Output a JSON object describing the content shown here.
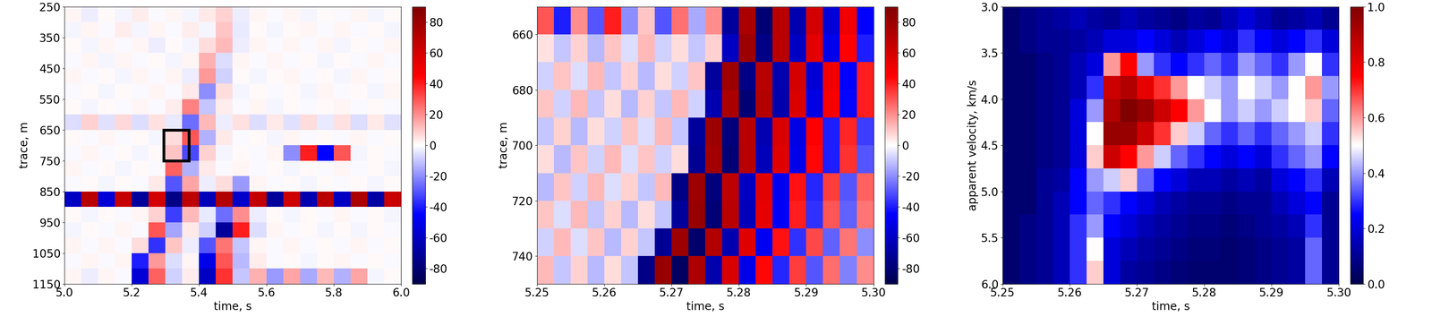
{
  "chart_data": [
    {
      "type": "heatmap",
      "xlabel": "time, s",
      "ylabel": "trace, m",
      "color": "seismic",
      "xlim": [
        5.0,
        6.0
      ],
      "ylim": [
        1150,
        250
      ],
      "xticks": [
        5.0,
        5.2,
        5.4,
        5.6,
        5.8,
        6.0
      ],
      "yticks": [
        250,
        350,
        450,
        550,
        650,
        750,
        850,
        950,
        1050,
        1150
      ],
      "clim": [
        -90,
        90
      ],
      "cticks": [
        -80,
        -60,
        -40,
        -20,
        0,
        20,
        40,
        60,
        80
      ],
      "box": {
        "x": [
          5.295,
          5.37
        ],
        "y": [
          650,
          750
        ]
      },
      "x_edges": [
        5.0,
        5.05,
        5.1,
        5.15,
        5.2,
        5.25,
        5.3,
        5.35,
        5.4,
        5.45,
        5.5,
        5.55,
        5.6,
        5.65,
        5.7,
        5.75,
        5.8,
        5.85,
        5.9,
        5.95,
        6.0
      ],
      "y_edges": [
        250,
        300,
        350,
        400,
        450,
        500,
        550,
        600,
        650,
        700,
        750,
        800,
        850,
        900,
        950,
        1000,
        1050,
        1100,
        1150
      ],
      "cells": [
        [
          2,
          -3,
          1,
          -2,
          3,
          -1,
          2,
          -2,
          4,
          8,
          -3,
          2,
          -1,
          2,
          -2,
          1,
          -1,
          2,
          -2,
          1
        ],
        [
          -2,
          2,
          -1,
          3,
          -2,
          2,
          -1,
          3,
          -2,
          10,
          -4,
          1,
          -2,
          1,
          2,
          -1,
          2,
          -1,
          1,
          -2
        ],
        [
          1,
          -2,
          2,
          -1,
          2,
          -3,
          1,
          -2,
          6,
          12,
          -3,
          2,
          -1,
          2,
          -1,
          2,
          -2,
          1,
          -1,
          2
        ],
        [
          -1,
          2,
          -2,
          2,
          -1,
          1,
          -2,
          2,
          14,
          -6,
          2,
          -1,
          2,
          -1,
          1,
          -2,
          1,
          -1,
          2,
          -1
        ],
        [
          2,
          -1,
          1,
          -2,
          2,
          -1,
          2,
          -3,
          18,
          -8,
          1,
          -2,
          1,
          2,
          -1,
          1,
          -2,
          2,
          -1,
          1
        ],
        [
          -1,
          1,
          -2,
          1,
          -1,
          2,
          -1,
          4,
          -20,
          6,
          -2,
          1,
          -1,
          1,
          -2,
          2,
          -1,
          1,
          -2,
          2
        ],
        [
          1,
          -2,
          1,
          -1,
          2,
          -1,
          3,
          22,
          -10,
          3,
          -1,
          2,
          -2,
          1,
          -1,
          1,
          2,
          -1,
          1,
          -1
        ],
        [
          -6,
          8,
          -5,
          7,
          -6,
          5,
          -4,
          -26,
          12,
          -3,
          5,
          -6,
          4,
          -5,
          6,
          -4,
          5,
          -6,
          4,
          -5
        ],
        [
          1,
          -1,
          2,
          -1,
          1,
          -2,
          6,
          30,
          -14,
          4,
          -1,
          1,
          -2,
          2,
          -1,
          1,
          -1,
          2,
          -1,
          1
        ],
        [
          -1,
          2,
          -1,
          1,
          -2,
          1,
          10,
          -32,
          8,
          -2,
          1,
          -1,
          2,
          -20,
          40,
          -45,
          30,
          -2,
          1,
          -1
        ],
        [
          2,
          -1,
          1,
          -2,
          1,
          -1,
          28,
          -14,
          4,
          -1,
          2,
          -1,
          1,
          -2,
          1,
          -1,
          2,
          -1,
          1,
          -2
        ],
        [
          -1,
          1,
          -2,
          1,
          -1,
          4,
          -30,
          16,
          -3,
          6,
          -18,
          2,
          -1,
          1,
          -2,
          1,
          -1,
          1,
          -2,
          1
        ],
        [
          -60,
          70,
          -55,
          65,
          -70,
          60,
          -75,
          68,
          -62,
          72,
          -58,
          66,
          -70,
          62,
          -65,
          70,
          -60,
          75,
          -68,
          64
        ],
        [
          1,
          -2,
          1,
          -1,
          2,
          8,
          -34,
          12,
          -4,
          -26,
          20,
          -3,
          1,
          -2,
          1,
          -1,
          2,
          -1,
          1,
          -2
        ],
        [
          -2,
          1,
          -1,
          2,
          -1,
          30,
          -16,
          4,
          -8,
          -70,
          40,
          -6,
          2,
          -1,
          1,
          -2,
          1,
          -2,
          1,
          -1
        ],
        [
          2,
          -1,
          2,
          -1,
          6,
          -36,
          10,
          -3,
          -30,
          24,
          -10,
          2,
          -1,
          2,
          -1,
          1,
          -1,
          2,
          -1,
          1
        ],
        [
          -1,
          2,
          -1,
          2,
          -40,
          18,
          -6,
          2,
          -50,
          30,
          -12,
          3,
          -1,
          1,
          -2,
          1,
          2,
          -1,
          1,
          -1
        ],
        [
          2,
          -3,
          2,
          -1,
          -55,
          28,
          -8,
          3,
          -60,
          36,
          -10,
          14,
          -18,
          16,
          -15,
          12,
          -14,
          16,
          -2,
          1
        ]
      ]
    },
    {
      "type": "heatmap",
      "xlabel": "time, s",
      "ylabel": "trace, m",
      "color": "seismic",
      "xlim": [
        5.25,
        5.3
      ],
      "ylim": [
        750,
        650
      ],
      "xticks": [
        5.25,
        5.26,
        5.27,
        5.28,
        5.29,
        {
          "value": 5.3,
          "label": "5.30"
        }
      ],
      "yticks": [
        660,
        680,
        700,
        720,
        740
      ],
      "clim": [
        -90,
        90
      ],
      "cticks": [
        -80,
        -60,
        -40,
        -20,
        0,
        20,
        40,
        60,
        80
      ],
      "x_edges": [
        5.25,
        5.2525,
        5.255,
        5.2575,
        5.26,
        5.2625,
        5.265,
        5.2675,
        5.27,
        5.2725,
        5.275,
        5.2775,
        5.28,
        5.2825,
        5.285,
        5.2875,
        5.29,
        5.2925,
        5.295,
        5.2975,
        5.3
      ],
      "y_edges": [
        650,
        660,
        670,
        680,
        690,
        700,
        710,
        720,
        730,
        740,
        750
      ],
      "cells": [
        [
          30,
          -40,
          20,
          -30,
          40,
          -20,
          10,
          -30,
          25,
          -15,
          20,
          -70,
          75,
          -80,
          70,
          -65,
          60,
          -55,
          50,
          -45
        ],
        [
          5,
          -10,
          8,
          -12,
          10,
          -6,
          12,
          -8,
          6,
          -10,
          8,
          -60,
          80,
          -75,
          70,
          -60,
          55,
          -50,
          45,
          -40
        ],
        [
          -8,
          10,
          -6,
          12,
          -10,
          8,
          -12,
          6,
          -8,
          10,
          -70,
          80,
          -75,
          70,
          -65,
          60,
          -55,
          50,
          -45,
          40
        ],
        [
          10,
          -8,
          12,
          -10,
          6,
          -12,
          8,
          -10,
          12,
          -8,
          -65,
          75,
          -80,
          72,
          -66,
          58,
          -52,
          48,
          -44,
          40
        ],
        [
          -10,
          8,
          -12,
          6,
          -8,
          10,
          -6,
          12,
          -10,
          -70,
          80,
          -78,
          70,
          -64,
          58,
          -52,
          46,
          -40,
          38,
          -34
        ],
        [
          6,
          -12,
          10,
          -8,
          12,
          -6,
          10,
          -8,
          6,
          -72,
          78,
          -80,
          70,
          -62,
          56,
          -50,
          44,
          -40,
          36,
          -30
        ],
        [
          -12,
          10,
          -8,
          12,
          -6,
          8,
          -10,
          12,
          -75,
          80,
          -78,
          68,
          -60,
          55,
          -48,
          42,
          -38,
          34,
          -30,
          28
        ],
        [
          10,
          -6,
          12,
          -10,
          8,
          -12,
          6,
          -10,
          -70,
          82,
          -80,
          70,
          -62,
          54,
          -46,
          40,
          -36,
          30,
          -28,
          24
        ],
        [
          -8,
          12,
          -6,
          10,
          -12,
          8,
          -10,
          -72,
          80,
          -82,
          72,
          -64,
          56,
          -48,
          42,
          -36,
          32,
          -28,
          24,
          -20
        ],
        [
          12,
          -10,
          8,
          -12,
          6,
          -10,
          -75,
          82,
          -85,
          74,
          -66,
          58,
          -50,
          44,
          -38,
          34,
          -30,
          26,
          -22,
          20
        ]
      ]
    },
    {
      "type": "heatmap",
      "xlabel": "time, s",
      "ylabel": "apparent velocity, km/s",
      "color": "seismic",
      "xlim": [
        5.25,
        5.3
      ],
      "ylim": [
        6.0,
        3.0
      ],
      "xticks": [
        5.25,
        5.26,
        5.27,
        5.28,
        5.29,
        {
          "value": 5.3,
          "label": "5.30"
        }
      ],
      "yticks": [
        3.0,
        3.5,
        4.0,
        4.5,
        5.0,
        5.5,
        6.0
      ],
      "clim": [
        0.0,
        1.0
      ],
      "cticks": [
        0.0,
        0.2,
        0.4,
        0.6,
        0.8,
        1.0
      ],
      "x_edges": [
        5.25,
        5.2525,
        5.255,
        5.2575,
        5.26,
        5.2625,
        5.265,
        5.2675,
        5.27,
        5.2725,
        5.275,
        5.2775,
        5.28,
        5.2825,
        5.285,
        5.2875,
        5.29,
        5.2925,
        5.295,
        5.2975,
        5.3
      ],
      "y_edges": [
        3.0,
        3.25,
        3.5,
        3.75,
        4.0,
        4.25,
        4.5,
        4.75,
        5.0,
        5.25,
        5.5,
        5.75,
        6.0
      ],
      "cells": [
        [
          0.05,
          0.08,
          0.1,
          0.12,
          0.15,
          0.12,
          0.1,
          0.15,
          0.12,
          0.1,
          0.08,
          0.12,
          0.1,
          0.15,
          0.2,
          0.15,
          0.1,
          0.12,
          0.15,
          0.1
        ],
        [
          0.05,
          0.08,
          0.1,
          0.1,
          0.12,
          0.15,
          0.2,
          0.2,
          0.25,
          0.2,
          0.15,
          0.2,
          0.25,
          0.2,
          0.3,
          0.25,
          0.2,
          0.25,
          0.3,
          0.2
        ],
        [
          0.05,
          0.05,
          0.08,
          0.1,
          0.15,
          0.2,
          0.6,
          0.75,
          0.4,
          0.3,
          0.25,
          0.3,
          0.35,
          0.3,
          0.4,
          0.35,
          0.3,
          0.4,
          0.5,
          0.3
        ],
        [
          0.05,
          0.05,
          0.08,
          0.1,
          0.15,
          0.3,
          0.85,
          0.9,
          0.8,
          0.7,
          0.6,
          0.5,
          0.45,
          0.4,
          0.5,
          0.45,
          0.4,
          0.5,
          0.6,
          0.4
        ],
        [
          0.05,
          0.05,
          0.08,
          0.1,
          0.2,
          0.4,
          0.9,
          1.0,
          0.95,
          0.85,
          0.75,
          0.6,
          0.5,
          0.4,
          0.45,
          0.4,
          0.45,
          0.5,
          0.55,
          0.35
        ],
        [
          0.05,
          0.05,
          0.08,
          0.1,
          0.2,
          0.5,
          0.95,
          0.95,
          0.85,
          0.7,
          0.55,
          0.45,
          0.35,
          0.3,
          0.35,
          0.3,
          0.35,
          0.4,
          0.45,
          0.3
        ],
        [
          0.05,
          0.05,
          0.08,
          0.1,
          0.2,
          0.55,
          0.85,
          0.75,
          0.6,
          0.45,
          0.35,
          0.3,
          0.25,
          0.2,
          0.25,
          0.2,
          0.3,
          0.35,
          0.4,
          0.25
        ],
        [
          0.05,
          0.05,
          0.1,
          0.12,
          0.25,
          0.4,
          0.45,
          0.55,
          0.35,
          0.25,
          0.2,
          0.15,
          0.15,
          0.12,
          0.15,
          0.12,
          0.2,
          0.25,
          0.3,
          0.15
        ],
        [
          0.05,
          0.05,
          0.1,
          0.15,
          0.25,
          0.35,
          0.3,
          0.25,
          0.2,
          0.15,
          0.12,
          0.1,
          0.1,
          0.08,
          0.1,
          0.1,
          0.15,
          0.2,
          0.25,
          0.1
        ],
        [
          0.05,
          0.08,
          0.1,
          0.15,
          0.3,
          0.4,
          0.25,
          0.2,
          0.15,
          0.12,
          0.1,
          0.08,
          0.08,
          0.06,
          0.08,
          0.1,
          0.12,
          0.15,
          0.3,
          0.1
        ],
        [
          0.05,
          0.08,
          0.1,
          0.15,
          0.3,
          0.5,
          0.2,
          0.15,
          0.12,
          0.1,
          0.08,
          0.06,
          0.06,
          0.05,
          0.06,
          0.08,
          0.1,
          0.12,
          0.35,
          0.1
        ],
        [
          0.05,
          0.08,
          0.1,
          0.15,
          0.3,
          0.55,
          0.2,
          0.12,
          0.1,
          0.08,
          0.06,
          0.05,
          0.05,
          0.05,
          0.06,
          0.08,
          0.1,
          0.12,
          0.35,
          0.1
        ]
      ]
    }
  ]
}
